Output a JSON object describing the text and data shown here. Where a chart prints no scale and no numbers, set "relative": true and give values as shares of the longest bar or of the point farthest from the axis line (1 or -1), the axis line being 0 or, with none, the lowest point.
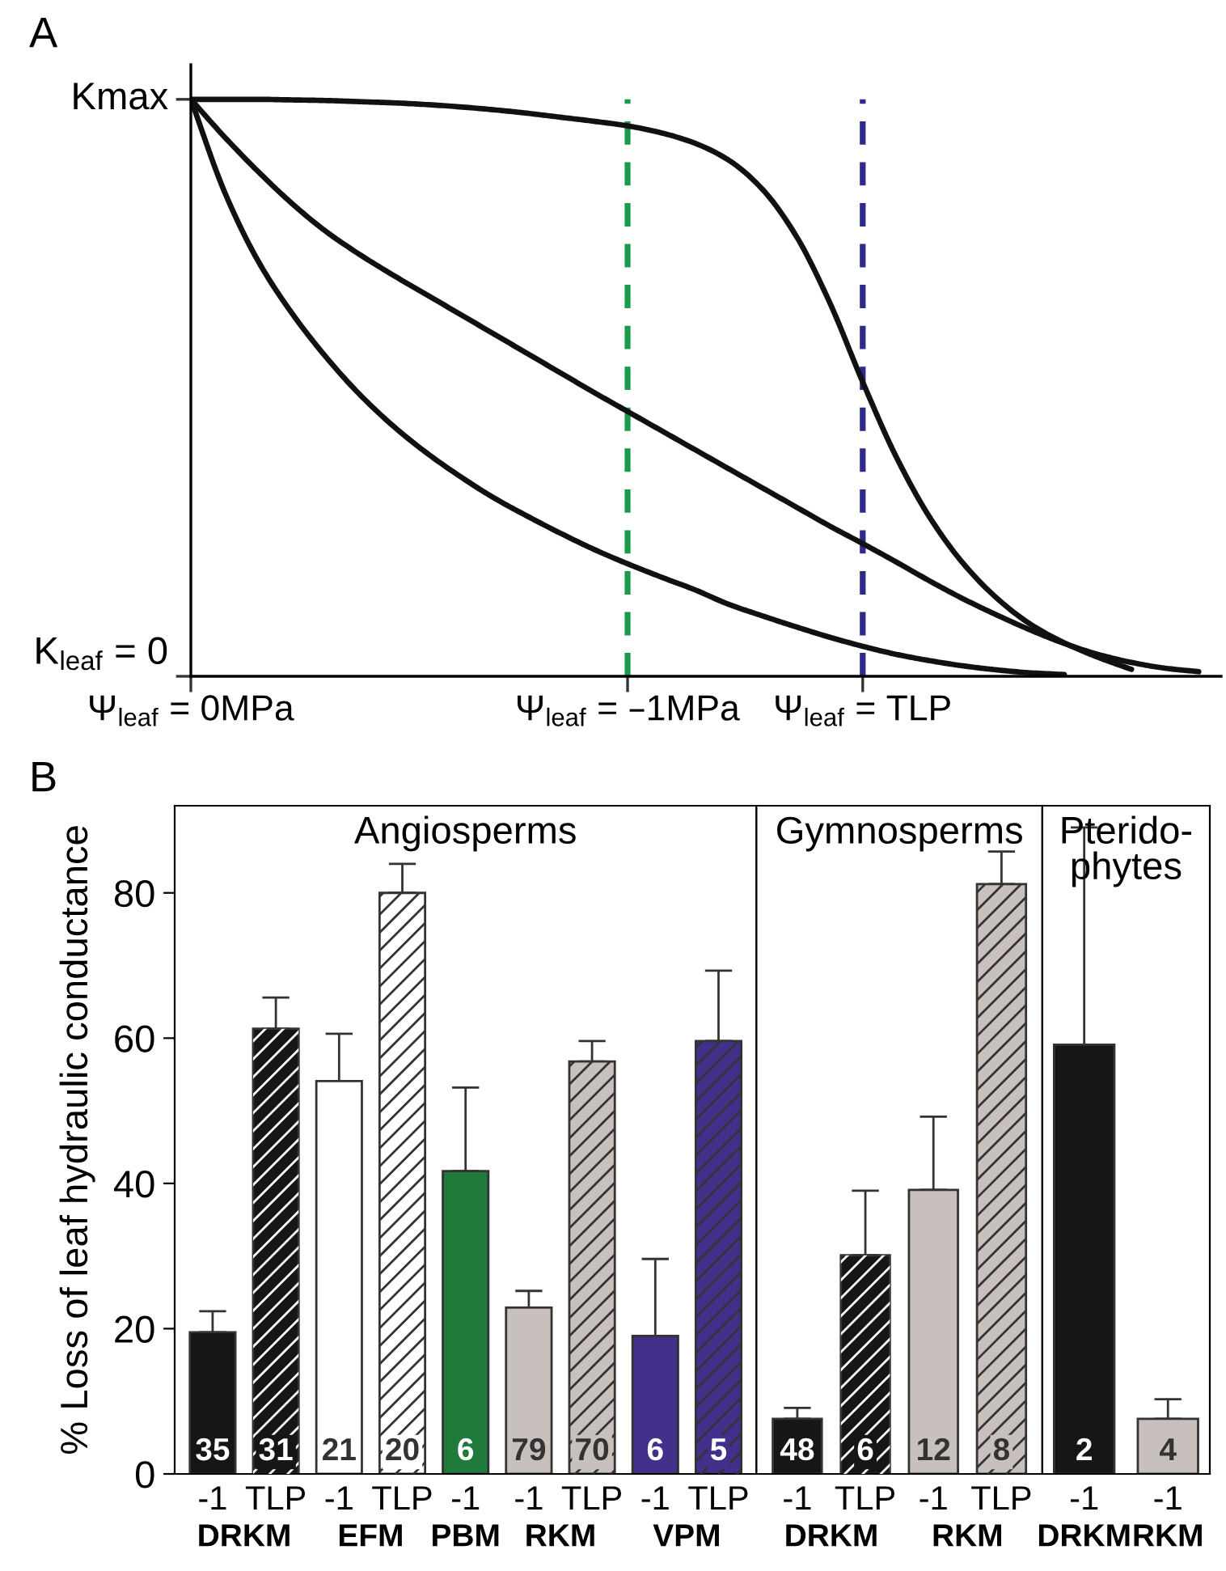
{
  "chart_data": [
    {
      "type": "line",
      "title": "A",
      "relative": true,
      "marker": "none",
      "line_style": "solid",
      "categories": [
        "Ψ$_{leaf}$ = 0MPa",
        null,
        null,
        null,
        null,
        null,
        null,
        null,
        null,
        null,
        null,
        null,
        null,
        "Ψ$_{leaf}$ = –1MPa",
        null,
        null,
        null,
        null,
        null,
        null,
        "Ψ$_{leaf}$ = TLP",
        null,
        null,
        null,
        null,
        null,
        null,
        null,
        null,
        null,
        null
      ],
      "series": [
        {
          "color": "#111111",
          "values": [
            1,
            1,
            1,
            0.999,
            0.998,
            0.996,
            0.994,
            0.991,
            0.987,
            0.982,
            0.976,
            0.969,
            0.962,
            0.954,
            0.942,
            0.924,
            0.895,
            0.845,
            0.765,
            0.65,
            0.51,
            0.38,
            0.275,
            0.195,
            0.135,
            0.09,
            0.058,
            0.033,
            0.012,
            null,
            null
          ]
        },
        {
          "color": "#111111",
          "values": [
            1,
            0.935,
            0.875,
            0.82,
            0.772,
            0.732,
            0.696,
            0.662,
            0.628,
            0.594,
            0.56,
            0.526,
            0.492,
            0.459,
            0.426,
            0.393,
            0.36,
            0.327,
            0.294,
            0.261,
            0.23,
            0.198,
            0.165,
            0.134,
            0.106,
            0.08,
            0.057,
            0.038,
            0.024,
            0.014,
            0.008
          ]
        },
        {
          "color": "#111111",
          "values": [
            1,
            0.84,
            0.72,
            0.63,
            0.555,
            0.49,
            0.435,
            0.388,
            0.347,
            0.31,
            0.278,
            0.248,
            0.22,
            0.195,
            0.172,
            0.15,
            0.125,
            0.105,
            0.086,
            0.068,
            0.052,
            0.038,
            0.027,
            0.018,
            0.011,
            0.006,
            0.003,
            null,
            null,
            null,
            null
          ]
        }
      ],
      "ref_lines": [
        {
          "axis": "x",
          "value": "Ψ$_{leaf}$ = –1MPa",
          "color": "#1a9a4a",
          "line_style": "dashed"
        },
        {
          "axis": "x",
          "value": "Ψ$_{leaf}$ = TLP",
          "color": "#2e2a8a",
          "line_style": "dashed"
        }
      ],
      "annotations": [
        "Kmax",
        "K$_{leaf}$ = 0"
      ]
    },
    {
      "type": "bar",
      "title": "B",
      "subtitle": "Angiosperms",
      "ylabel": "% Loss of leaf hydraulic conductance",
      "ylim": [
        0,
        92
      ],
      "yticks": [
        0,
        20,
        40,
        60,
        80
      ],
      "categories": [
        "-1",
        "TLP",
        "-1",
        "TLP",
        "-1",
        "-1",
        "TLP",
        "-1",
        "TLP"
      ],
      "series": [
        {
          "name": "DRKM",
          "color": "#161616",
          "values": [
            19.5,
            61.3,
            null,
            null,
            null,
            null,
            null,
            null,
            null
          ],
          "errors": [
            [
              19.5,
              22.4
            ],
            [
              61.3,
              65.6
            ],
            null,
            null,
            null,
            null,
            null,
            null,
            null
          ]
        },
        {
          "name": "EFM",
          "color": "#ffffff",
          "values": [
            null,
            null,
            54.1,
            80,
            null,
            null,
            null,
            null,
            null
          ],
          "errors": [
            null,
            null,
            [
              54.1,
              60.6
            ],
            [
              80,
              84
            ],
            null,
            null,
            null,
            null,
            null
          ]
        },
        {
          "name": "PBM",
          "color": "#1f7a3c",
          "values": [
            null,
            null,
            null,
            null,
            41.7,
            null,
            null,
            null,
            null
          ],
          "errors": [
            null,
            null,
            null,
            null,
            [
              41.7,
              53.2
            ],
            null,
            null,
            null,
            null
          ]
        },
        {
          "name": "RKM",
          "color": "#c8c0bc",
          "values": [
            null,
            null,
            null,
            null,
            null,
            22.9,
            56.8,
            null,
            null
          ],
          "errors": [
            null,
            null,
            null,
            null,
            null,
            [
              22.9,
              25.2
            ],
            [
              56.8,
              59.6
            ],
            null,
            null
          ]
        },
        {
          "name": "VPM",
          "color": "#42308a",
          "values": [
            null,
            null,
            null,
            null,
            null,
            null,
            null,
            19,
            59.6
          ],
          "errors": [
            null,
            null,
            null,
            null,
            null,
            null,
            null,
            [
              19,
              29.6
            ],
            [
              59.6,
              69.3
            ]
          ]
        }
      ],
      "annotations": [
        "35",
        "31",
        "21",
        "20",
        "6",
        "79",
        "70",
        "6",
        "5"
      ]
    },
    {
      "type": "bar",
      "subtitle": "Gymnosperms",
      "ylim": [
        0,
        92
      ],
      "yticks": [
        0,
        20,
        40,
        60,
        80
      ],
      "tick_labels": "x",
      "categories": [
        "-1",
        "TLP",
        "-1",
        "TLP"
      ],
      "series": [
        {
          "name": "DRKM",
          "color": "#161616",
          "values": [
            7.6,
            30.1,
            null,
            null
          ],
          "errors": [
            [
              7.6,
              9.1
            ],
            [
              30.1,
              39
            ],
            null,
            null
          ]
        },
        {
          "name": "RKM",
          "color": "#c8c0bc",
          "values": [
            null,
            null,
            39.1,
            81.2
          ],
          "errors": [
            null,
            null,
            [
              39.1,
              49.2
            ],
            [
              81.2,
              85.7
            ]
          ]
        }
      ],
      "annotations": [
        "48",
        "6",
        "12",
        "8"
      ]
    },
    {
      "type": "bar",
      "subtitle": "Pterido-\nphytes",
      "ylim": [
        0,
        92
      ],
      "yticks": [
        0,
        20,
        40,
        60,
        80
      ],
      "tick_labels": "x",
      "categories": [
        "-1",
        "-1"
      ],
      "series": [
        {
          "name": "DRKM",
          "color": "#161616",
          "values": [
            59.1,
            null
          ],
          "errors": [
            [
              59.1,
              89
            ],
            null
          ]
        },
        {
          "name": "RKM",
          "color": "#c8c0bc",
          "values": [
            null,
            7.6
          ],
          "errors": [
            null,
            [
              7.6,
              10.3
            ]
          ]
        }
      ],
      "annotations": [
        "2",
        "4"
      ]
    }
  ]
}
